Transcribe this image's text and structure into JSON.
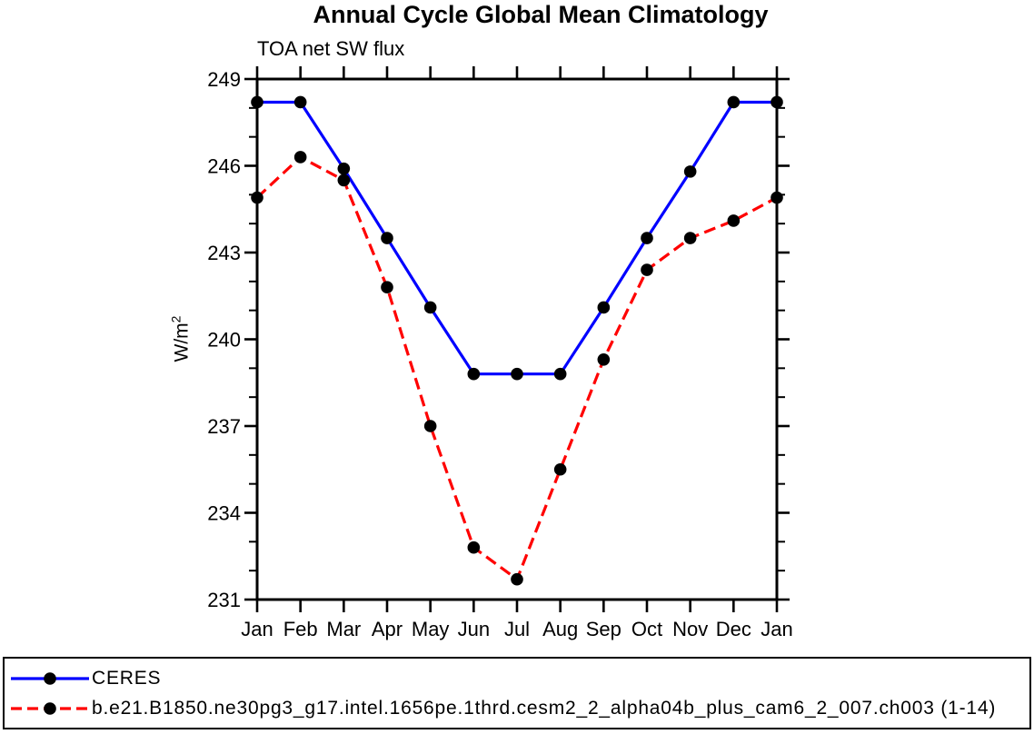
{
  "chart_data": {
    "type": "line",
    "title": "Annual Cycle Global Mean Climatology",
    "subtitle": "TOA net SW flux",
    "ylabel_base": "W/m",
    "ylabel_exponent": "2",
    "categories": [
      "Jan",
      "Feb",
      "Mar",
      "Apr",
      "May",
      "Jun",
      "Jul",
      "Aug",
      "Sep",
      "Oct",
      "Nov",
      "Dec",
      "Jan"
    ],
    "ylim": [
      231,
      249
    ],
    "ytick_major_step": 3,
    "ytick_minor_step": 1,
    "ytick_labels": [
      "249",
      "246",
      "243",
      "240",
      "237",
      "234",
      "231"
    ],
    "grid": false,
    "legend_position": "bottom-box",
    "axis_color": "#000000",
    "marker_color": "#000000",
    "series": [
      {
        "name": "CERES",
        "color": "#0000ff",
        "line_style": "solid",
        "marker": "circle",
        "values": [
          248.2,
          248.2,
          245.9,
          243.5,
          241.1,
          238.8,
          238.8,
          238.8,
          241.1,
          243.5,
          245.8,
          248.2,
          248.2
        ]
      },
      {
        "name": "b.e21.B1850.ne30pg3_g17.intel.1656pe.1thrd.cesm2_2_alpha04b_plus_cam6_2_007.ch003 (1-14)",
        "color": "#ff0000",
        "line_style": "dashed",
        "marker": "circle",
        "values": [
          244.9,
          246.3,
          245.5,
          241.8,
          237.0,
          232.8,
          231.7,
          235.5,
          239.3,
          242.4,
          243.5,
          244.1,
          244.9
        ]
      }
    ]
  }
}
